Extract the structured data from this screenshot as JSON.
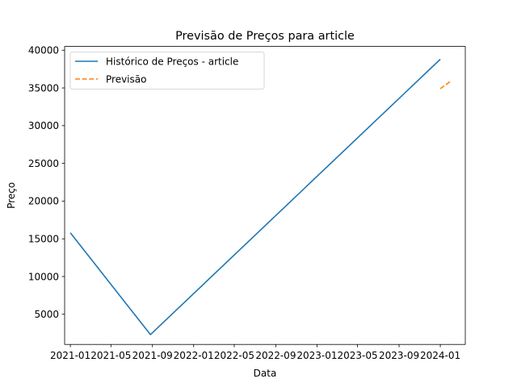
{
  "chart_data": {
    "type": "line",
    "title": "Previsão de Preços para article",
    "xlabel": "Data",
    "ylabel": "Preço",
    "xlim": [
      "2020-12-15",
      "2024-03-15"
    ],
    "ylim": [
      1000,
      40500
    ],
    "x_ticks": [
      "2021-01",
      "2021-05",
      "2021-09",
      "2022-01",
      "2022-05",
      "2022-09",
      "2023-01",
      "2023-05",
      "2023-09",
      "2024-01"
    ],
    "y_ticks": [
      5000,
      10000,
      15000,
      20000,
      25000,
      30000,
      35000,
      40000
    ],
    "grid": false,
    "legend_position": "upper-left",
    "series": [
      {
        "name": "Histórico de Preços - article",
        "color": "#1f77b4",
        "style": "solid",
        "points": [
          {
            "x": "2021-01-01",
            "y": 15800
          },
          {
            "x": "2021-08-26",
            "y": 2300
          },
          {
            "x": "2024-01-01",
            "y": 38800
          }
        ]
      },
      {
        "name": "Previsão",
        "color": "#ff7f0e",
        "style": "dashed",
        "points": [
          {
            "x": "2024-01-01",
            "y": 34900
          },
          {
            "x": "2024-02-01",
            "y": 35900
          }
        ]
      }
    ]
  }
}
